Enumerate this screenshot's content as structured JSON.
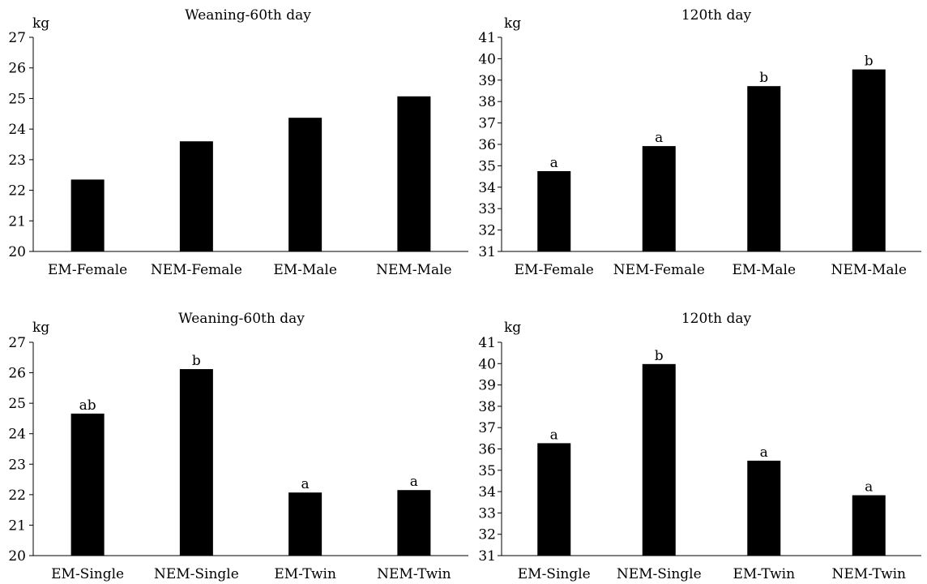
{
  "chart_data": [
    {
      "type": "bar",
      "title": "Weaning-60th day",
      "ylabel": "kg",
      "categories": [
        "EM-Female",
        "NEM-Female",
        "EM-Male",
        "NEM-Male"
      ],
      "values": [
        22.35,
        23.6,
        24.37,
        25.07
      ],
      "value_labels": [
        "",
        "",
        "",
        ""
      ],
      "ylim": [
        20,
        27
      ],
      "yticks": [
        20,
        21,
        22,
        23,
        24,
        25,
        26,
        27
      ],
      "bar_color": "#000000",
      "grid": false,
      "legend": "none"
    },
    {
      "type": "bar",
      "title": "120th day",
      "ylabel": "kg",
      "categories": [
        "EM-Female",
        "NEM-Female",
        "EM-Male",
        "NEM-Male"
      ],
      "values": [
        34.75,
        35.92,
        38.72,
        39.5
      ],
      "value_labels": [
        "a",
        "a",
        "b",
        "b"
      ],
      "ylim": [
        31,
        41
      ],
      "yticks": [
        31,
        32,
        33,
        34,
        35,
        36,
        37,
        38,
        39,
        40,
        41
      ],
      "bar_color": "#000000",
      "grid": false,
      "legend": "none"
    },
    {
      "type": "bar",
      "title": "Weaning-60th day",
      "ylabel": "kg",
      "categories": [
        "EM-Single",
        "NEM-Single",
        "EM-Twin",
        "NEM-Twin"
      ],
      "values": [
        24.66,
        26.12,
        22.07,
        22.15
      ],
      "value_labels": [
        "ab",
        "b",
        "a",
        "a"
      ],
      "ylim": [
        20,
        27
      ],
      "yticks": [
        20,
        21,
        22,
        23,
        24,
        25,
        26,
        27
      ],
      "bar_color": "#000000",
      "grid": false,
      "legend": "none"
    },
    {
      "type": "bar",
      "title": "120th day",
      "ylabel": "kg",
      "categories": [
        "EM-Single",
        "NEM-Single",
        "EM-Twin",
        "NEM-Twin"
      ],
      "values": [
        36.27,
        39.98,
        35.45,
        33.83
      ],
      "value_labels": [
        "a",
        "b",
        "a",
        "a"
      ],
      "ylim": [
        31,
        41
      ],
      "yticks": [
        31,
        32,
        33,
        34,
        35,
        36,
        37,
        38,
        39,
        40,
        41
      ],
      "bar_color": "#000000",
      "grid": false,
      "legend": "none"
    }
  ]
}
